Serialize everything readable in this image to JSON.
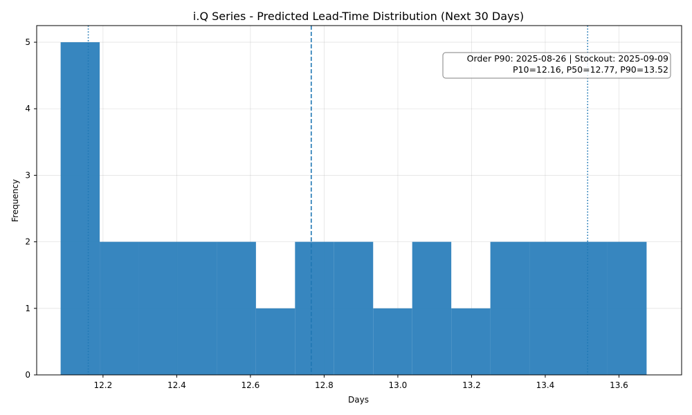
{
  "chart_data": {
    "type": "histogram",
    "title": "i.Q Series - Predicted Lead-Time Distribution (Next 30 Days)",
    "xlabel": "Days",
    "ylabel": "Frequency",
    "xlim": [
      12.02,
      13.77
    ],
    "ylim": [
      0,
      5.25
    ],
    "xticks": [
      "12.2",
      "12.4",
      "12.6",
      "12.8",
      "13.0",
      "13.2",
      "13.4",
      "13.6"
    ],
    "yticks": [
      "0",
      "1",
      "2",
      "3",
      "4",
      "5"
    ],
    "grid": true,
    "bar_color": "#3182bd",
    "bins": [
      {
        "start": 12.085,
        "end": 12.191,
        "count": 5
      },
      {
        "start": 12.191,
        "end": 12.297,
        "count": 2
      },
      {
        "start": 12.297,
        "end": 12.403,
        "count": 2
      },
      {
        "start": 12.403,
        "end": 12.509,
        "count": 2
      },
      {
        "start": 12.509,
        "end": 12.615,
        "count": 2
      },
      {
        "start": 12.615,
        "end": 12.721,
        "count": 1
      },
      {
        "start": 12.721,
        "end": 12.827,
        "count": 2
      },
      {
        "start": 12.827,
        "end": 12.933,
        "count": 2
      },
      {
        "start": 12.933,
        "end": 13.039,
        "count": 1
      },
      {
        "start": 13.039,
        "end": 13.145,
        "count": 2
      },
      {
        "start": 13.145,
        "end": 13.251,
        "count": 1
      },
      {
        "start": 13.251,
        "end": 13.357,
        "count": 2
      },
      {
        "start": 13.357,
        "end": 13.463,
        "count": 2
      },
      {
        "start": 13.463,
        "end": 13.569,
        "count": 2
      },
      {
        "start": 13.569,
        "end": 13.675,
        "count": 2
      }
    ],
    "reference_lines": [
      {
        "label": "P10",
        "value": 12.16,
        "style": "dotted"
      },
      {
        "label": "P50",
        "value": 12.765,
        "style": "dashed"
      },
      {
        "label": "P90",
        "value": 13.515,
        "style": "dotted"
      }
    ],
    "annotation": {
      "line1": "Order P90: 2025-08-26 | Stockout: 2025-09-09",
      "line2": "P10=12.16, P50=12.77, P90=13.52",
      "placement": "top-right"
    }
  }
}
